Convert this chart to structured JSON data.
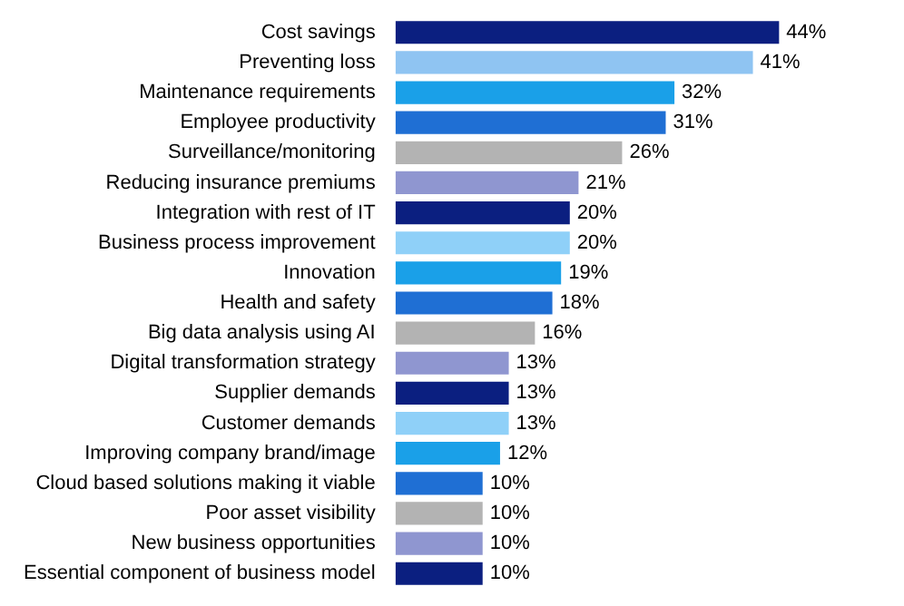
{
  "chart_data": {
    "type": "bar",
    "orientation": "horizontal",
    "categories": [
      "Cost savings",
      "Preventing loss",
      "Maintenance requirements",
      "Employee productivity",
      "Surveillance/monitoring",
      "Reducing insurance premiums",
      "Integration with rest of IT",
      "Business process improvement",
      "Innovation",
      "Health and safety",
      "Big data analysis using AI",
      "Digital transformation strategy",
      "Supplier demands",
      "Customer demands",
      "Improving company brand/image",
      "Cloud based solutions making it viable",
      "Poor asset visibility",
      "New business opportunities",
      "Essential component of business model"
    ],
    "values": [
      44,
      41,
      32,
      31,
      26,
      21,
      20,
      20,
      19,
      18,
      16,
      13,
      13,
      13,
      12,
      10,
      10,
      10,
      10
    ],
    "value_labels": [
      "44%",
      "41%",
      "32%",
      "31%",
      "26%",
      "21%",
      "20%",
      "20%",
      "19%",
      "18%",
      "16%",
      "13%",
      "13%",
      "13%",
      "12%",
      "10%",
      "10%",
      "10%",
      "10%"
    ],
    "colors": [
      "#0b1f80",
      "#8fc4f2",
      "#1aa0e8",
      "#1f6fd4",
      "#b3b3b3",
      "#8f96d0",
      "#0b1f80",
      "#8fd0f8",
      "#1aa0e8",
      "#1f6fd4",
      "#b3b3b3",
      "#8f96d0",
      "#0b1f80",
      "#8fd0f8",
      "#1aa0e8",
      "#1f6fd4",
      "#b3b3b3",
      "#8f96d0",
      "#0b1f80"
    ],
    "legend": false
  }
}
